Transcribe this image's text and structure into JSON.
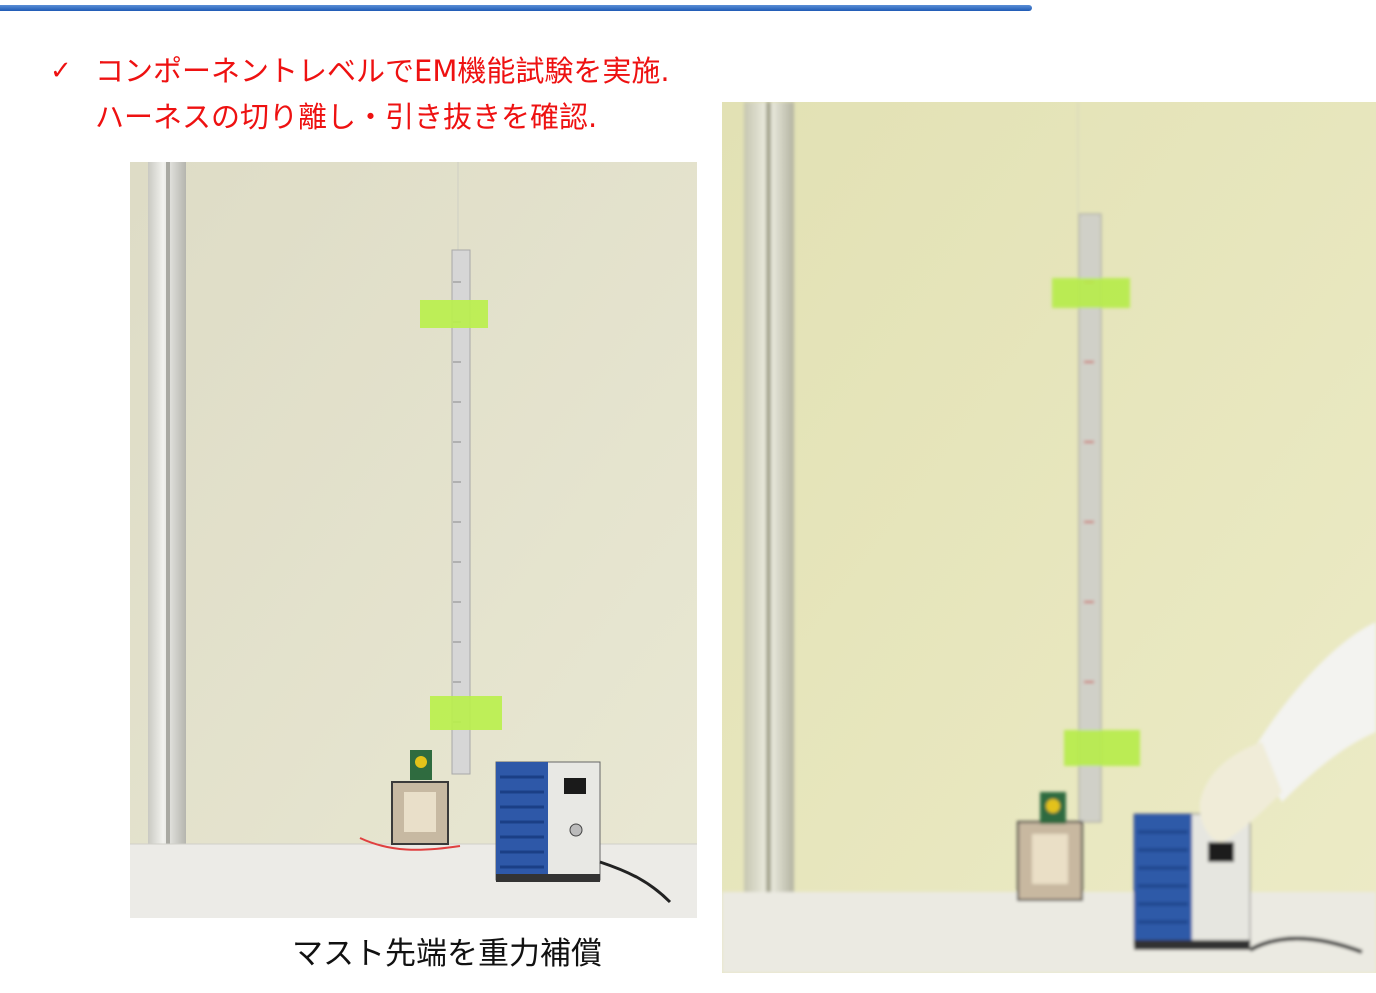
{
  "slide": {
    "bullet_lines": [
      "コンポーネントレベルでEM機能試験を実施.",
      "ハーネスの切り離し・引き抜きを確認."
    ],
    "caption": "マスト先端を重力補償"
  },
  "colors": {
    "bullet_text": "#ee1111",
    "top_rule": "#2a66c0",
    "wall_photo1": "#e4e3cd",
    "wall_photo2": "#e7e6bd",
    "tape": "#b9f04a"
  },
  "photos": [
    {
      "name": "photo-mast-gravity-compensated"
    },
    {
      "name": "photo-harness-pullout"
    }
  ]
}
